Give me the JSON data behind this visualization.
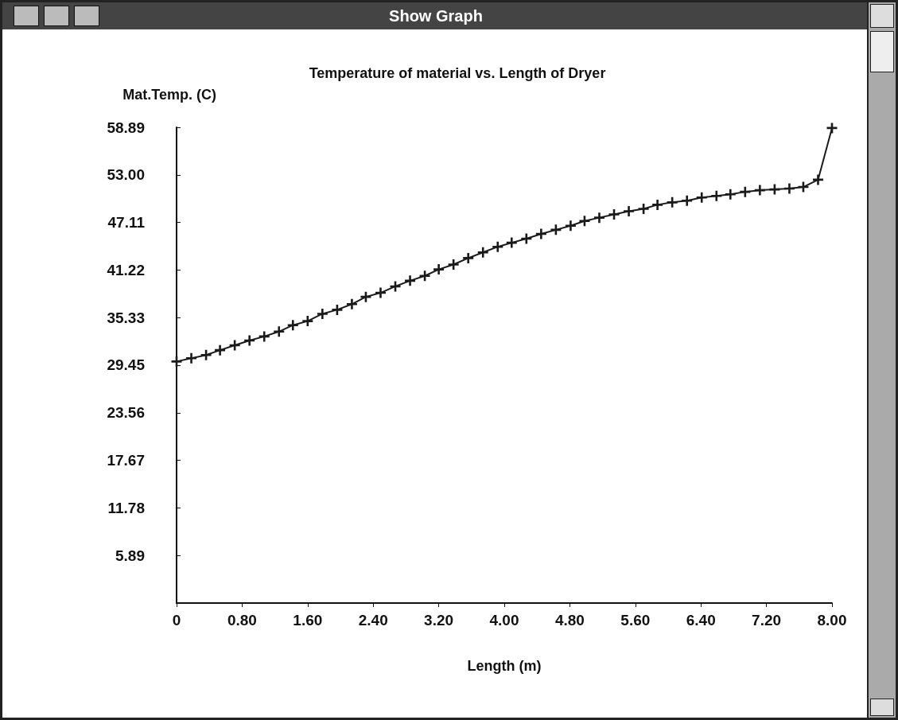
{
  "chart_data": {
    "type": "line",
    "title": "Temperature of material vs. Length of Dryer",
    "xlabel": "Length (m)",
    "ylabel": "Mat.Temp. (C)",
    "annotations": [
      "Show Graph"
    ],
    "x": [
      0,
      0.18,
      0.36,
      0.53,
      0.71,
      0.89,
      1.07,
      1.25,
      1.42,
      1.6,
      1.78,
      1.96,
      2.14,
      2.31,
      2.49,
      2.67,
      2.85,
      3.03,
      3.2,
      3.38,
      3.56,
      3.74,
      3.92,
      4.09,
      4.27,
      4.45,
      4.63,
      4.81,
      4.98,
      5.16,
      5.34,
      5.52,
      5.7,
      5.87,
      6.05,
      6.23,
      6.41,
      6.59,
      6.76,
      6.94,
      7.12,
      7.3,
      7.48,
      7.65,
      7.83,
      8.0
    ],
    "series": [
      {
        "color": "#1a1a1a",
        "values": [
          29.9,
          30.3,
          30.7,
          31.3,
          31.9,
          32.5,
          33.0,
          33.6,
          34.4,
          34.9,
          35.8,
          36.3,
          37.0,
          37.9,
          38.4,
          39.2,
          39.9,
          40.5,
          41.3,
          41.9,
          42.7,
          43.4,
          44.1,
          44.6,
          45.1,
          45.7,
          46.2,
          46.7,
          47.3,
          47.7,
          48.1,
          48.5,
          48.8,
          49.3,
          49.6,
          49.8,
          50.2,
          50.4,
          50.6,
          50.9,
          51.1,
          51.2,
          51.3,
          51.5,
          52.4,
          58.8
        ]
      }
    ],
    "xlim": [
      0,
      8
    ],
    "xticks": [
      0,
      {
        "value": 0.8,
        "label": "0.80"
      },
      {
        "value": 1.6,
        "label": "1.60"
      },
      {
        "value": 2.4,
        "label": "2.40"
      },
      {
        "value": 3.2,
        "label": "3.20"
      },
      {
        "value": 4,
        "label": "4.00"
      },
      {
        "value": 4.8,
        "label": "4.80"
      },
      {
        "value": 5.6,
        "label": "5.60"
      },
      {
        "value": 6.4,
        "label": "6.40"
      },
      {
        "value": 7.2,
        "label": "7.20"
      },
      {
        "value": 8,
        "label": "8.00"
      }
    ],
    "ylim": [
      0,
      58.89
    ],
    "yticks": [
      5.89,
      11.78,
      17.67,
      23.56,
      29.45,
      35.33,
      41.22,
      47.11,
      {
        "value": 53,
        "label": "53.00"
      },
      58.89
    ],
    "marker": "cross",
    "line_style": "solid"
  }
}
